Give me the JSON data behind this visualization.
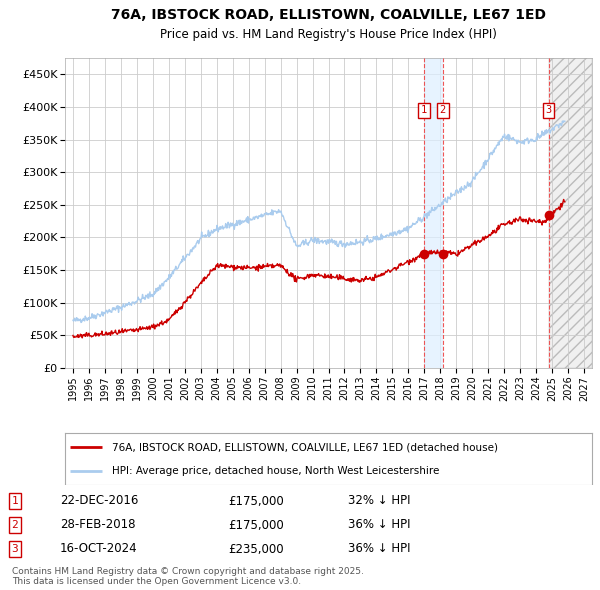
{
  "title1": "76A, IBSTOCK ROAD, ELLISTOWN, COALVILLE, LE67 1ED",
  "title2": "Price paid vs. HM Land Registry's House Price Index (HPI)",
  "legend_red": "76A, IBSTOCK ROAD, ELLISTOWN, COALVILLE, LE67 1ED (detached house)",
  "legend_blue": "HPI: Average price, detached house, North West Leicestershire",
  "transactions": [
    {
      "num": 1,
      "date": "22-DEC-2016",
      "price": "£175,000",
      "hpi": "32% ↓ HPI",
      "year": 2016.97,
      "price_val": 175000
    },
    {
      "num": 2,
      "date": "28-FEB-2018",
      "price": "£175,000",
      "hpi": "36% ↓ HPI",
      "year": 2018.16,
      "price_val": 175000
    },
    {
      "num": 3,
      "date": "16-OCT-2024",
      "price": "£235,000",
      "hpi": "36% ↓ HPI",
      "year": 2024.79,
      "price_val": 235000
    }
  ],
  "footer": "Contains HM Land Registry data © Crown copyright and database right 2025.\nThis data is licensed under the Open Government Licence v3.0.",
  "bg_color": "#ffffff",
  "grid_color": "#cccccc",
  "red_color": "#cc0000",
  "blue_color": "#aaccee",
  "ylim": [
    0,
    475000
  ],
  "yticks": [
    0,
    50000,
    100000,
    150000,
    200000,
    250000,
    300000,
    350000,
    400000,
    450000
  ],
  "xlim_start": 1994.5,
  "xlim_end": 2027.5,
  "xticks": [
    1995,
    1996,
    1997,
    1998,
    1999,
    2000,
    2001,
    2002,
    2003,
    2004,
    2005,
    2006,
    2007,
    2008,
    2009,
    2010,
    2011,
    2012,
    2013,
    2014,
    2015,
    2016,
    2017,
    2018,
    2019,
    2020,
    2021,
    2022,
    2023,
    2024,
    2025,
    2026,
    2027
  ]
}
